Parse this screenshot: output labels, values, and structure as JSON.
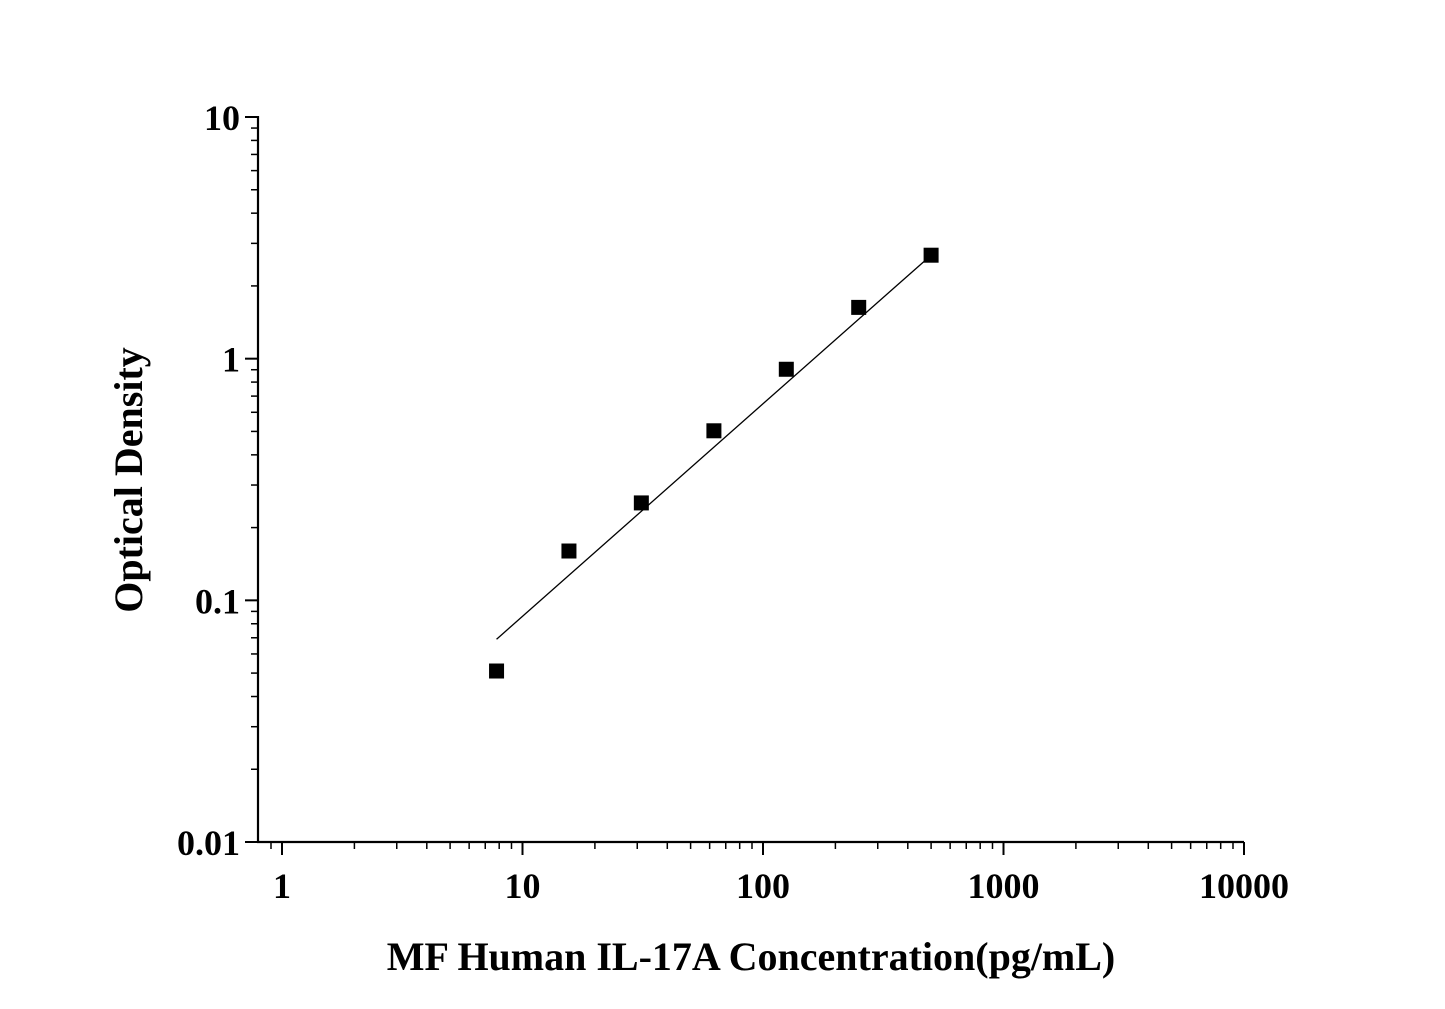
{
  "chart_data": {
    "type": "scatter",
    "title": "",
    "xlabel": "MF Human IL-17A Concentration(pg/mL)",
    "ylabel": "Optical Density",
    "x_scale": "log",
    "y_scale": "log",
    "xlim": [
      0.9,
      10000
    ],
    "ylim": [
      0.01,
      10
    ],
    "x_ticks": [
      1,
      10,
      100,
      1000,
      10000
    ],
    "x_tick_labels": [
      "1",
      "10",
      "100",
      "1000",
      "10000"
    ],
    "y_ticks": [
      0.01,
      0.1,
      1,
      10
    ],
    "y_tick_labels": [
      "0.01",
      "0.1",
      "1",
      "10"
    ],
    "grid": false,
    "legend": "none",
    "series": [
      {
        "marker": "square",
        "color": "#000000",
        "points": [
          {
            "x": 7.8,
            "y": 0.051
          },
          {
            "x": 15.6,
            "y": 0.16
          },
          {
            "x": 31.2,
            "y": 0.253
          },
          {
            "x": 62.5,
            "y": 0.503
          },
          {
            "x": 125,
            "y": 0.904
          },
          {
            "x": 250,
            "y": 1.63
          },
          {
            "x": 500,
            "y": 2.68
          }
        ]
      }
    ],
    "fit_line": {
      "type": "line",
      "color": "#000000",
      "points": [
        {
          "x": 7.8,
          "y": 0.069
        },
        {
          "x": 500,
          "y": 2.68
        }
      ]
    }
  }
}
